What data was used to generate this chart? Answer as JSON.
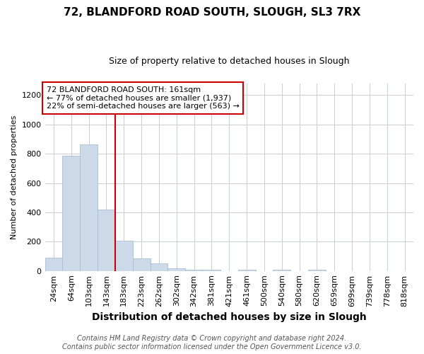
{
  "title1": "72, BLANDFORD ROAD SOUTH, SLOUGH, SL3 7RX",
  "title2": "Size of property relative to detached houses in Slough",
  "xlabel": "Distribution of detached houses by size in Slough",
  "ylabel": "Number of detached properties",
  "footer1": "Contains HM Land Registry data © Crown copyright and database right 2024.",
  "footer2": "Contains public sector information licensed under the Open Government Licence v3.0.",
  "annotation_line1": "72 BLANDFORD ROAD SOUTH: 161sqm",
  "annotation_line2": "← 77% of detached houses are smaller (1,937)",
  "annotation_line3": "22% of semi-detached houses are larger (563) →",
  "bar_labels": [
    "24sqm",
    "64sqm",
    "103sqm",
    "143sqm",
    "183sqm",
    "223sqm",
    "262sqm",
    "302sqm",
    "342sqm",
    "381sqm",
    "421sqm",
    "461sqm",
    "500sqm",
    "540sqm",
    "580sqm",
    "620sqm",
    "659sqm",
    "699sqm",
    "739sqm",
    "778sqm",
    "818sqm"
  ],
  "bar_values": [
    90,
    785,
    865,
    420,
    205,
    85,
    52,
    20,
    10,
    10,
    0,
    10,
    0,
    10,
    0,
    10,
    0,
    0,
    0,
    0,
    0
  ],
  "bar_color": "#ccd9e8",
  "bar_edge_color": "#aabdd4",
  "red_line_color": "#cc0000",
  "ylim": [
    0,
    1280
  ],
  "yticks": [
    0,
    200,
    400,
    600,
    800,
    1000,
    1200
  ],
  "background_color": "#ffffff",
  "grid_color": "#c8cdd6",
  "title1_fontsize": 11,
  "title2_fontsize": 9,
  "xlabel_fontsize": 10,
  "ylabel_fontsize": 8,
  "tick_fontsize": 8,
  "footer_fontsize": 7
}
